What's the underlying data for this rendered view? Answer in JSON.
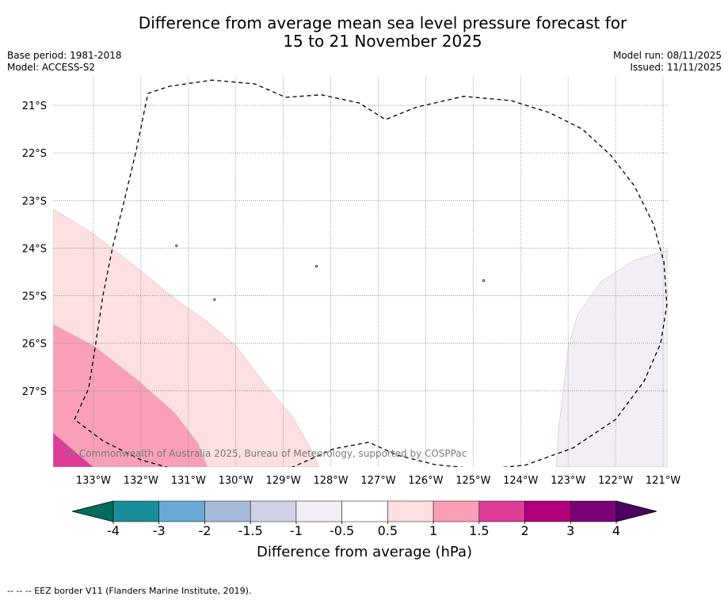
{
  "header": {
    "title_line1": "Difference from average mean sea level pressure forecast for",
    "title_line2": "15 to 21 November 2025",
    "base_period": "Base period: 1981-2018",
    "model": "Model: ACCESS-S2",
    "model_run": "Model run: 08/11/2025",
    "issued": "Issued: 11/11/2025"
  },
  "chart_data": {
    "type": "filled-contour-map",
    "title": "Difference from average mean sea level pressure forecast for 15 to 21 November 2025",
    "xlim": [
      -133.85,
      -120.9
    ],
    "ylim": [
      -28.6,
      -20.4
    ],
    "x_ticks": [
      -133,
      -132,
      -131,
      -130,
      -129,
      -128,
      -127,
      -126,
      -125,
      -124,
      -123,
      -122,
      -121
    ],
    "x_tick_labels": [
      "133°W",
      "132°W",
      "131°W",
      "130°W",
      "129°W",
      "128°W",
      "127°W",
      "126°W",
      "125°W",
      "124°W",
      "123°W",
      "122°W",
      "121°W"
    ],
    "y_ticks": [
      -21,
      -22,
      -23,
      -24,
      -25,
      -26,
      -27
    ],
    "y_tick_labels": [
      "21°S",
      "22°S",
      "23°S",
      "24°S",
      "25°S",
      "26°S",
      "27°S"
    ],
    "colorbar": {
      "label": "Difference from average (hPa)",
      "bounds": [
        -4,
        -3,
        -2,
        -1.5,
        -1,
        -0.5,
        0.5,
        1,
        1.5,
        2,
        3,
        4
      ],
      "tick_labels": [
        "-4",
        "-3",
        "-2",
        "-1.5",
        "-1",
        "-0.5",
        "0.5",
        "1",
        "1.5",
        "2",
        "3",
        "4"
      ],
      "colors": [
        "#1a8e98",
        "#68aad3",
        "#a6bad9",
        "#d1d1e6",
        "#f3eef5",
        "#ffffff",
        "#fde0e0",
        "#f9a0b8",
        "#de3c98",
        "#b0007a",
        "#7b0078"
      ],
      "under_color": "#006c5c",
      "over_color": "#4a005f"
    },
    "regions": [
      {
        "level": "0.5 to 1",
        "color": "#fde0e0",
        "polygon": [
          [
            -133.85,
            -23.18
          ],
          [
            -133.0,
            -23.7
          ],
          [
            -132.1,
            -24.4
          ],
          [
            -131.3,
            -25.05
          ],
          [
            -130.6,
            -25.55
          ],
          [
            -130.0,
            -26.05
          ],
          [
            -129.4,
            -26.85
          ],
          [
            -128.8,
            -27.55
          ],
          [
            -128.4,
            -28.25
          ],
          [
            -128.25,
            -28.6
          ],
          [
            -133.85,
            -28.6
          ]
        ]
      },
      {
        "level": "1 to 1.5",
        "color": "#f9a0b8",
        "polygon": [
          [
            -133.85,
            -25.6
          ],
          [
            -133.0,
            -26.05
          ],
          [
            -132.1,
            -26.75
          ],
          [
            -131.3,
            -27.45
          ],
          [
            -130.8,
            -28.1
          ],
          [
            -130.6,
            -28.6
          ],
          [
            -133.85,
            -28.6
          ]
        ]
      },
      {
        "level": "1.5 to 2",
        "color": "#de3c98",
        "polygon": [
          [
            -133.85,
            -27.88
          ],
          [
            -133.3,
            -28.35
          ],
          [
            -133.0,
            -28.6
          ],
          [
            -133.85,
            -28.6
          ]
        ]
      },
      {
        "level": "-1 to -0.5",
        "color": "#f3eef5",
        "polygon": [
          [
            -120.9,
            -24.05
          ],
          [
            -121.6,
            -24.25
          ],
          [
            -122.3,
            -24.7
          ],
          [
            -122.8,
            -25.4
          ],
          [
            -123.0,
            -26.1
          ],
          [
            -123.1,
            -27.0
          ],
          [
            -123.2,
            -27.8
          ],
          [
            -123.25,
            -28.6
          ],
          [
            -120.9,
            -28.6
          ]
        ]
      }
    ],
    "eez_border": [
      [
        -133.4,
        -27.6
      ],
      [
        -133.1,
        -26.95
      ],
      [
        -132.95,
        -26.0
      ],
      [
        -132.8,
        -25.0
      ],
      [
        -132.6,
        -24.0
      ],
      [
        -132.35,
        -23.0
      ],
      [
        -132.1,
        -21.95
      ],
      [
        -131.85,
        -20.75
      ],
      [
        -131.4,
        -20.6
      ],
      [
        -130.5,
        -20.47
      ],
      [
        -129.6,
        -20.55
      ],
      [
        -128.95,
        -20.83
      ],
      [
        -128.2,
        -20.78
      ],
      [
        -127.4,
        -20.95
      ],
      [
        -126.85,
        -21.3
      ],
      [
        -126.2,
        -21.04
      ],
      [
        -125.2,
        -20.81
      ],
      [
        -124.2,
        -20.9
      ],
      [
        -123.4,
        -21.15
      ],
      [
        -122.7,
        -21.5
      ],
      [
        -122.1,
        -22.05
      ],
      [
        -121.6,
        -22.7
      ],
      [
        -121.2,
        -23.5
      ],
      [
        -120.98,
        -24.3
      ],
      [
        -120.92,
        -25.2
      ],
      [
        -121.05,
        -26.0
      ],
      [
        -121.4,
        -26.8
      ],
      [
        -122.0,
        -27.6
      ],
      [
        -122.9,
        -28.2
      ],
      [
        -123.9,
        -28.56
      ],
      [
        -124.8,
        -28.65
      ],
      [
        -125.8,
        -28.55
      ],
      [
        -126.6,
        -28.35
      ],
      [
        -127.2,
        -28.08
      ],
      [
        -127.95,
        -28.22
      ],
      [
        -128.35,
        -28.4
      ],
      [
        -128.8,
        -28.6
      ],
      [
        -129.4,
        -28.78
      ],
      [
        -130.2,
        -28.82
      ],
      [
        -131.1,
        -28.7
      ],
      [
        -132.0,
        -28.45
      ],
      [
        -132.8,
        -28.05
      ],
      [
        -133.4,
        -27.6
      ]
    ],
    "islands": [
      [
        -131.25,
        -23.95
      ],
      [
        -128.3,
        -24.38
      ],
      [
        -130.45,
        -25.08
      ],
      [
        -124.78,
        -24.68
      ]
    ],
    "copyright": "© Commonwealth of Australia 2025, Bureau of Meteorology, supported by COSPPac"
  },
  "footer": {
    "legend_text": "-- -- -- EEZ border V11 (Flanders Marine Institute, 2019)."
  }
}
